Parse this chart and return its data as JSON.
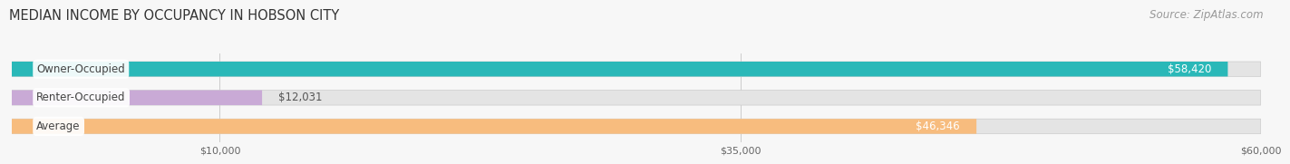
{
  "title": "MEDIAN INCOME BY OCCUPANCY IN HOBSON CITY",
  "source": "Source: ZipAtlas.com",
  "categories": [
    "Owner-Occupied",
    "Renter-Occupied",
    "Average"
  ],
  "values": [
    58420,
    12031,
    46346
  ],
  "colors": [
    "#2ab8b8",
    "#c9aad6",
    "#f7bc7e"
  ],
  "label_values": [
    "$58,420",
    "$12,031",
    "$46,346"
  ],
  "xmin": 0,
  "xmax": 60000,
  "xticks": [
    10000,
    35000,
    60000
  ],
  "xtick_labels": [
    "$10,000",
    "$35,000",
    "$60,000"
  ],
  "background_color": "#f7f7f7",
  "bar_bg_color": "#e4e4e4",
  "bar_height": 0.52,
  "bar_gap": 0.12,
  "title_fontsize": 10.5,
  "source_fontsize": 8.5,
  "label_fontsize": 8.5,
  "value_fontsize": 8.5,
  "grid_color": "#cccccc",
  "label_text_color": "#444444",
  "value_inside_color": "#ffffff",
  "value_outside_color": "#555555"
}
